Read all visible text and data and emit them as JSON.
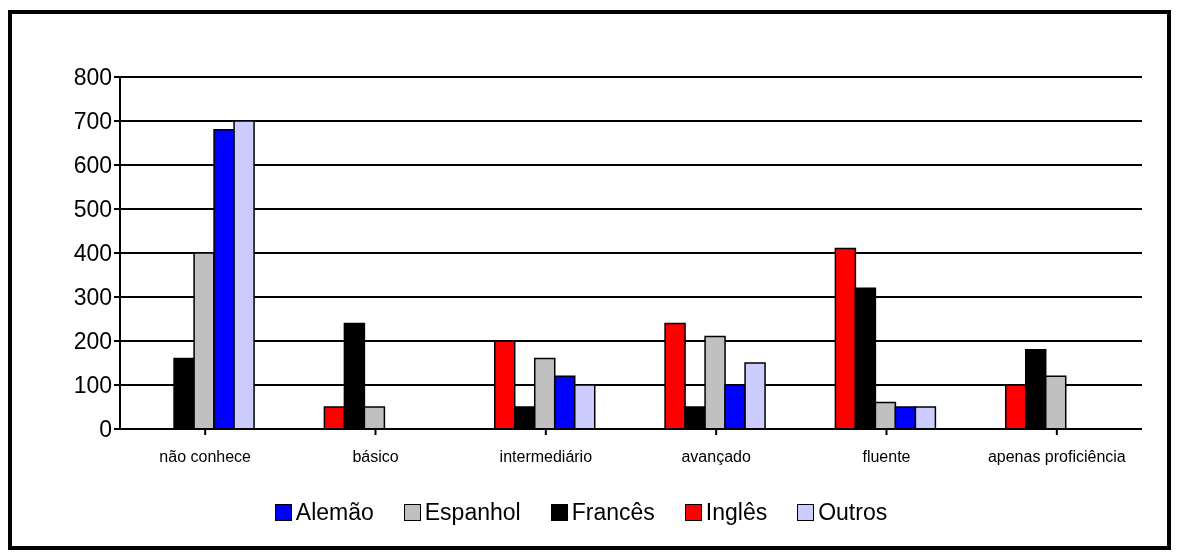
{
  "chart_data": {
    "type": "bar",
    "categories": [
      "não conhece",
      "básico",
      "intermediário",
      "avançado",
      "fluente",
      "apenas proficiência"
    ],
    "series": [
      {
        "name": "Inglês",
        "color": "#ff0000",
        "values": [
          null,
          50,
          200,
          240,
          410,
          100
        ]
      },
      {
        "name": "Francês",
        "color": "#000000",
        "values": [
          160,
          240,
          50,
          50,
          320,
          180
        ]
      },
      {
        "name": "Espanhol",
        "color": "#c0c0c0",
        "values": [
          400,
          50,
          160,
          210,
          60,
          120
        ]
      },
      {
        "name": "Alemão",
        "color": "#0000ff",
        "values": [
          680,
          null,
          120,
          100,
          50,
          null
        ]
      },
      {
        "name": "Outros",
        "color": "#ccccff",
        "values": [
          700,
          null,
          100,
          150,
          50,
          null
        ]
      }
    ],
    "ylim": [
      0,
      800
    ],
    "yticks": [
      0,
      100,
      200,
      300,
      400,
      500,
      600,
      700,
      800
    ],
    "grid": "y",
    "legend": "bottom"
  }
}
